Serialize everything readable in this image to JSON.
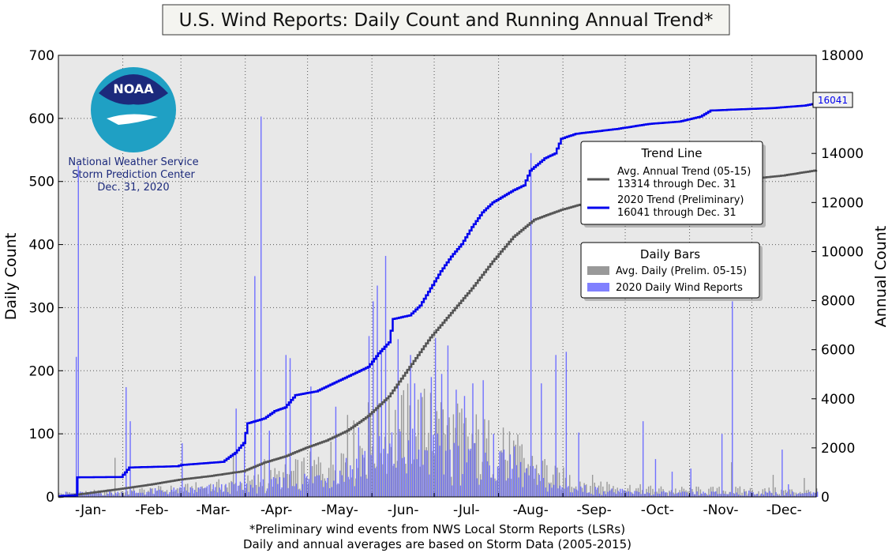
{
  "chart_data": {
    "type": "bar",
    "title": "U.S. Wind Reports: Daily Count and Running Annual Trend*",
    "ylabel": "Daily Count",
    "y2label": "Annual Count",
    "ylim": [
      0,
      700
    ],
    "y2lim": [
      0,
      18000
    ],
    "grid": true,
    "yticks": [
      0,
      100,
      200,
      300,
      400,
      500,
      600,
      700
    ],
    "y2ticks": [
      0,
      2000,
      4000,
      6000,
      8000,
      10000,
      12000,
      14000,
      16000,
      18000
    ],
    "y2ticks_text": [
      "0",
      "2000",
      "4000",
      "6000",
      "8000",
      "10000",
      "12000",
      "14000",
      "",
      "18000"
    ],
    "months": [
      "-Jan-",
      "-Feb-",
      "-Mar-",
      "-Apr-",
      "-May-",
      "-Jun-",
      "-Jul-",
      "-Aug-",
      "-Sep-",
      "-Oct-",
      "-Nov-",
      "-Dec-"
    ],
    "footnotes": [
      "*Preliminary wind events from NWS Local Storm Reports (LSRs)",
      "Daily and annual averages are based on Storm Data (2005-2015)"
    ],
    "logo": {
      "wordmark": "NOAA",
      "lines": [
        "National Weather Service",
        "Storm Prediction Center",
        "Dec. 31, 2020"
      ]
    },
    "end_label": "16041",
    "legend_trend": {
      "title": "Trend Line",
      "entries": [
        {
          "lines": [
            "Avg. Annual Trend (05-15)",
            "13314 through Dec. 31"
          ],
          "color": "#555555"
        },
        {
          "lines": [
            "2020 Trend (Preliminary)",
            "16041 through Dec. 31"
          ],
          "color": "#0000ee"
        }
      ]
    },
    "legend_bars": {
      "title": "Daily Bars",
      "entries": [
        {
          "label": "Avg. Daily (Prelim. 05-15)",
          "color": "#999999"
        },
        {
          "label": "2020 Daily Wind Reports",
          "color": "#8080ff"
        }
      ]
    },
    "series": [
      {
        "name": "Avg. Annual Trend (05-15)",
        "kind": "line",
        "axis": "right",
        "color": "#555555",
        "points": [
          [
            1,
            0
          ],
          [
            15,
            150
          ],
          [
            31,
            330
          ],
          [
            45,
            500
          ],
          [
            59,
            700
          ],
          [
            74,
            850
          ],
          [
            90,
            1050
          ],
          [
            100,
            1400
          ],
          [
            110,
            1650
          ],
          [
            120,
            2000
          ],
          [
            130,
            2300
          ],
          [
            140,
            2700
          ],
          [
            150,
            3300
          ],
          [
            160,
            4100
          ],
          [
            170,
            5300
          ],
          [
            180,
            6500
          ],
          [
            190,
            7500
          ],
          [
            200,
            8500
          ],
          [
            210,
            9600
          ],
          [
            220,
            10600
          ],
          [
            230,
            11300
          ],
          [
            243,
            11700
          ],
          [
            260,
            12100
          ],
          [
            275,
            12350
          ],
          [
            290,
            12550
          ],
          [
            305,
            12700
          ],
          [
            320,
            12850
          ],
          [
            335,
            12970
          ],
          [
            350,
            13100
          ],
          [
            366,
            13314
          ]
        ]
      },
      {
        "name": "2020 Trend (Preliminary)",
        "kind": "line",
        "axis": "right",
        "color": "#0000ee",
        "points": [
          [
            1,
            30
          ],
          [
            9,
            60
          ],
          [
            10,
            800
          ],
          [
            31,
            810
          ],
          [
            33,
            1000
          ],
          [
            35,
            1200
          ],
          [
            58,
            1250
          ],
          [
            60,
            1300
          ],
          [
            80,
            1430
          ],
          [
            86,
            1800
          ],
          [
            90,
            2200
          ],
          [
            92,
            3000
          ],
          [
            100,
            3200
          ],
          [
            105,
            3500
          ],
          [
            110,
            3650
          ],
          [
            115,
            4150
          ],
          [
            125,
            4300
          ],
          [
            130,
            4500
          ],
          [
            145,
            5100
          ],
          [
            150,
            5300
          ],
          [
            155,
            5850
          ],
          [
            160,
            6300
          ],
          [
            162,
            7250
          ],
          [
            170,
            7400
          ],
          [
            175,
            7800
          ],
          [
            180,
            8500
          ],
          [
            185,
            9200
          ],
          [
            190,
            9800
          ],
          [
            195,
            10300
          ],
          [
            200,
            11000
          ],
          [
            205,
            11600
          ],
          [
            210,
            12000
          ],
          [
            220,
            12500
          ],
          [
            225,
            12700
          ],
          [
            228,
            13300
          ],
          [
            235,
            13800
          ],
          [
            240,
            14000
          ],
          [
            243,
            14600
          ],
          [
            250,
            14800
          ],
          [
            270,
            15000
          ],
          [
            285,
            15200
          ],
          [
            300,
            15300
          ],
          [
            310,
            15500
          ],
          [
            315,
            15750
          ],
          [
            330,
            15800
          ],
          [
            345,
            15850
          ],
          [
            360,
            15950
          ],
          [
            366,
            16041
          ]
        ]
      },
      {
        "name": "Avg. Daily (Prelim. 05-15)",
        "kind": "bars",
        "axis": "left",
        "color": "#999999",
        "envelope": [
          [
            1,
            5
          ],
          [
            30,
            8
          ],
          [
            60,
            12
          ],
          [
            90,
            20
          ],
          [
            110,
            32
          ],
          [
            125,
            45
          ],
          [
            140,
            70
          ],
          [
            160,
            95
          ],
          [
            170,
            110
          ],
          [
            180,
            105
          ],
          [
            195,
            90
          ],
          [
            210,
            75
          ],
          [
            225,
            55
          ],
          [
            240,
            30
          ],
          [
            260,
            20
          ],
          [
            280,
            12
          ],
          [
            300,
            10
          ],
          [
            330,
            10
          ],
          [
            366,
            8
          ]
        ],
        "peaks": [
          [
            28,
            62
          ],
          [
            85,
            70
          ],
          [
            100,
            60
          ],
          [
            140,
            130
          ],
          [
            150,
            150
          ],
          [
            160,
            155
          ],
          [
            170,
            145
          ],
          [
            180,
            165
          ],
          [
            185,
            150
          ],
          [
            195,
            140
          ],
          [
            215,
            110
          ],
          [
            235,
            60
          ],
          [
            325,
            55
          ],
          [
            345,
            35
          ],
          [
            360,
            30
          ]
        ]
      },
      {
        "name": "2020 Daily Wind Reports",
        "kind": "bars",
        "axis": "left",
        "color": "#7070ff",
        "envelope": [
          [
            1,
            5
          ],
          [
            30,
            6
          ],
          [
            60,
            10
          ],
          [
            90,
            15
          ],
          [
            110,
            20
          ],
          [
            125,
            30
          ],
          [
            140,
            45
          ],
          [
            150,
            55
          ],
          [
            160,
            65
          ],
          [
            170,
            70
          ],
          [
            180,
            65
          ],
          [
            195,
            55
          ],
          [
            210,
            45
          ],
          [
            225,
            35
          ],
          [
            240,
            15
          ],
          [
            260,
            10
          ],
          [
            280,
            6
          ],
          [
            300,
            5
          ],
          [
            330,
            6
          ],
          [
            366,
            5
          ]
        ],
        "spikes": [
          [
            9,
            222
          ],
          [
            10,
            525
          ],
          [
            33,
            174
          ],
          [
            35,
            120
          ],
          [
            60,
            85
          ],
          [
            86,
            140
          ],
          [
            90,
            88
          ],
          [
            95,
            350
          ],
          [
            98,
            603
          ],
          [
            102,
            105
          ],
          [
            110,
            225
          ],
          [
            112,
            220
          ],
          [
            122,
            175
          ],
          [
            134,
            143
          ],
          [
            145,
            110
          ],
          [
            150,
            255
          ],
          [
            152,
            310
          ],
          [
            154,
            335
          ],
          [
            156,
            235
          ],
          [
            158,
            382
          ],
          [
            164,
            250
          ],
          [
            170,
            225
          ],
          [
            172,
            180
          ],
          [
            175,
            165
          ],
          [
            180,
            190
          ],
          [
            182,
            252
          ],
          [
            185,
            195
          ],
          [
            188,
            240
          ],
          [
            192,
            170
          ],
          [
            196,
            160
          ],
          [
            200,
            180
          ],
          [
            205,
            185
          ],
          [
            210,
            100
          ],
          [
            215,
            75
          ],
          [
            220,
            80
          ],
          [
            228,
            545
          ],
          [
            233,
            180
          ],
          [
            240,
            225
          ],
          [
            245,
            230
          ],
          [
            251,
            102
          ],
          [
            282,
            120
          ],
          [
            288,
            60
          ],
          [
            296,
            40
          ],
          [
            305,
            45
          ],
          [
            320,
            100
          ],
          [
            325,
            310
          ],
          [
            349,
            75
          ],
          [
            352,
            20
          ]
        ]
      }
    ]
  }
}
